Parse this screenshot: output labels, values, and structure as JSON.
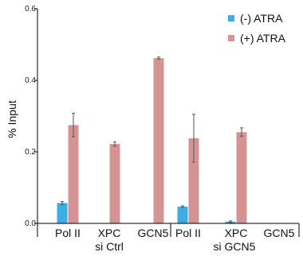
{
  "chart_data": {
    "type": "bar",
    "title": "",
    "xlabel": "",
    "ylabel": "% Input",
    "ylim": [
      0,
      0.6
    ],
    "yticks": [
      "0.0",
      "0.2",
      "0.4",
      "0.6"
    ],
    "ytick_values": [
      0,
      0.2,
      0.4,
      0.6
    ],
    "categories": [
      "Pol II",
      "XPC",
      "GCN5",
      "Pol II",
      "XPC",
      "GCN5"
    ],
    "groups": [
      {
        "label": "si Ctrl",
        "category_indices": [
          0,
          1,
          2
        ]
      },
      {
        "label": "si GCN5",
        "category_indices": [
          3,
          4,
          5
        ]
      }
    ],
    "series": [
      {
        "name": "(-) ATRA",
        "color": "#3daee3",
        "values": [
          0.057,
          null,
          null,
          0.047,
          0.005,
          null
        ],
        "errors": [
          0.004,
          null,
          null,
          0.002,
          0.002,
          null
        ]
      },
      {
        "name": "(+) ATRA",
        "color": "#d49494",
        "values": [
          0.275,
          0.222,
          0.462,
          0.238,
          0.255,
          null
        ],
        "errors": [
          0.033,
          0.006,
          0.003,
          0.067,
          0.012,
          null
        ]
      }
    ],
    "legend_position": "top-right",
    "grid": false
  }
}
